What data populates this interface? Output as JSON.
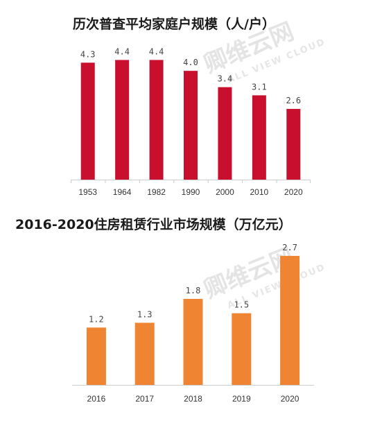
{
  "watermark": {
    "brand": "卿维云网",
    "sub": "ALL VIEW CLOUD"
  },
  "chart_data": [
    {
      "type": "bar",
      "title": "历次普查平均家庭户规模（人/户）",
      "categories": [
        "1953",
        "1964",
        "1982",
        "1990",
        "2000",
        "2010",
        "2020"
      ],
      "values": [
        4.3,
        4.4,
        4.4,
        4.0,
        3.4,
        3.1,
        2.6
      ],
      "value_labels": [
        "4.3",
        "4.4",
        "4.4",
        "4.0",
        "3.4",
        "3.1",
        "2.6"
      ],
      "color": "#c8102e",
      "ylim": [
        0,
        5.1
      ],
      "grid": false,
      "legend": "none"
    },
    {
      "type": "bar",
      "title": "2016-2020住房租赁行业市场规模（万亿元）",
      "categories": [
        "2016",
        "2017",
        "2018",
        "2019",
        "2020"
      ],
      "values": [
        1.2,
        1.3,
        1.8,
        1.5,
        2.7
      ],
      "value_labels": [
        "1.2",
        "1.3",
        "1.8",
        "1.5",
        "2.7"
      ],
      "color": "#ef8532",
      "ylim": [
        0,
        3.12
      ],
      "grid": false,
      "legend": "none"
    }
  ]
}
